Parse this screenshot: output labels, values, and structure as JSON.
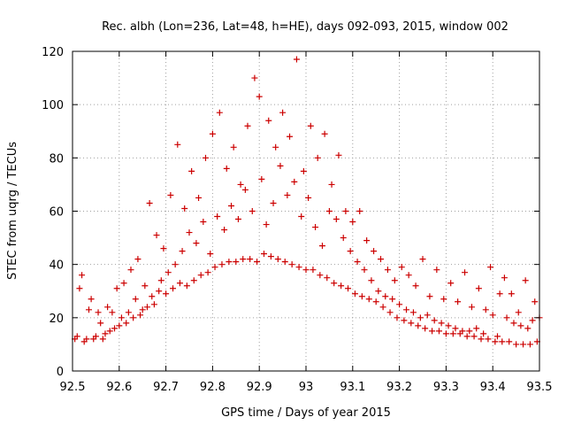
{
  "chart_data": {
    "type": "scatter",
    "title": "Rec. albh (Lon=236, Lat=48, h=HE), days 092-093, 2015, window 002",
    "xlabel": "GPS time / Days of year 2015",
    "ylabel": "STEC from uqrg / TECUs",
    "xlim": [
      92.5,
      93.5
    ],
    "ylim": [
      0,
      120
    ],
    "x_ticks": [
      "92.5",
      "92.6",
      "92.7",
      "92.8",
      "92.9",
      "93",
      "93.1",
      "93.2",
      "93.3",
      "93.4",
      "93.5"
    ],
    "y_ticks": [
      "0",
      "20",
      "40",
      "60",
      "80",
      "100",
      "120"
    ],
    "grid": true,
    "marker": "+",
    "series": [
      {
        "name": "STEC",
        "color": "#cc0000",
        "points": [
          [
            92.505,
            12
          ],
          [
            92.51,
            13
          ],
          [
            92.515,
            31
          ],
          [
            92.52,
            36
          ],
          [
            92.525,
            11
          ],
          [
            92.53,
            12
          ],
          [
            92.535,
            23
          ],
          [
            92.54,
            27
          ],
          [
            92.545,
            12
          ],
          [
            92.55,
            13
          ],
          [
            92.555,
            22
          ],
          [
            92.56,
            18
          ],
          [
            92.565,
            12
          ],
          [
            92.57,
            14
          ],
          [
            92.575,
            24
          ],
          [
            92.58,
            15
          ],
          [
            92.585,
            22
          ],
          [
            92.59,
            16
          ],
          [
            92.595,
            31
          ],
          [
            92.6,
            17
          ],
          [
            92.605,
            20
          ],
          [
            92.61,
            33
          ],
          [
            92.615,
            18
          ],
          [
            92.62,
            22
          ],
          [
            92.625,
            38
          ],
          [
            92.63,
            20
          ],
          [
            92.635,
            27
          ],
          [
            92.64,
            42
          ],
          [
            92.645,
            21
          ],
          [
            92.65,
            23
          ],
          [
            92.655,
            32
          ],
          [
            92.66,
            24
          ],
          [
            92.665,
            63
          ],
          [
            92.67,
            28
          ],
          [
            92.675,
            25
          ],
          [
            92.68,
            51
          ],
          [
            92.685,
            30
          ],
          [
            92.69,
            34
          ],
          [
            92.695,
            46
          ],
          [
            92.7,
            29
          ],
          [
            92.705,
            37
          ],
          [
            92.71,
            66
          ],
          [
            92.715,
            31
          ],
          [
            92.72,
            40
          ],
          [
            92.725,
            85
          ],
          [
            92.73,
            33
          ],
          [
            92.735,
            45
          ],
          [
            92.74,
            61
          ],
          [
            92.745,
            32
          ],
          [
            92.75,
            52
          ],
          [
            92.755,
            75
          ],
          [
            92.76,
            34
          ],
          [
            92.765,
            48
          ],
          [
            92.77,
            65
          ],
          [
            92.775,
            36
          ],
          [
            92.78,
            56
          ],
          [
            92.785,
            80
          ],
          [
            92.79,
            37
          ],
          [
            92.795,
            44
          ],
          [
            92.8,
            89
          ],
          [
            92.805,
            39
          ],
          [
            92.81,
            58
          ],
          [
            92.815,
            97
          ],
          [
            92.82,
            40
          ],
          [
            92.825,
            53
          ],
          [
            92.83,
            76
          ],
          [
            92.835,
            41
          ],
          [
            92.84,
            62
          ],
          [
            92.845,
            84
          ],
          [
            92.85,
            41
          ],
          [
            92.855,
            57
          ],
          [
            92.86,
            70
          ],
          [
            92.865,
            42
          ],
          [
            92.87,
            68
          ],
          [
            92.875,
            92
          ],
          [
            92.88,
            42
          ],
          [
            92.885,
            60
          ],
          [
            92.89,
            110
          ],
          [
            92.895,
            41
          ],
          [
            92.9,
            103
          ],
          [
            92.905,
            72
          ],
          [
            92.91,
            44
          ],
          [
            92.915,
            55
          ],
          [
            92.92,
            94
          ],
          [
            92.925,
            43
          ],
          [
            92.93,
            63
          ],
          [
            92.935,
            84
          ],
          [
            92.94,
            42
          ],
          [
            92.945,
            77
          ],
          [
            92.95,
            97
          ],
          [
            92.955,
            41
          ],
          [
            92.96,
            66
          ],
          [
            92.965,
            88
          ],
          [
            92.97,
            40
          ],
          [
            92.975,
            71
          ],
          [
            92.98,
            117
          ],
          [
            92.985,
            39
          ],
          [
            92.99,
            58
          ],
          [
            92.995,
            75
          ],
          [
            93.0,
            38
          ],
          [
            93.005,
            65
          ],
          [
            93.01,
            92
          ],
          [
            93.015,
            38
          ],
          [
            93.02,
            54
          ],
          [
            93.025,
            80
          ],
          [
            93.03,
            36
          ],
          [
            93.035,
            47
          ],
          [
            93.04,
            89
          ],
          [
            93.045,
            35
          ],
          [
            93.05,
            60
          ],
          [
            93.055,
            70
          ],
          [
            93.06,
            33
          ],
          [
            93.065,
            57
          ],
          [
            93.07,
            81
          ],
          [
            93.075,
            32
          ],
          [
            93.08,
            50
          ],
          [
            93.085,
            60
          ],
          [
            93.09,
            31
          ],
          [
            93.095,
            45
          ],
          [
            93.1,
            56
          ],
          [
            93.105,
            29
          ],
          [
            93.11,
            41
          ],
          [
            93.115,
            60
          ],
          [
            93.12,
            28
          ],
          [
            93.125,
            38
          ],
          [
            93.13,
            49
          ],
          [
            93.135,
            27
          ],
          [
            93.14,
            34
          ],
          [
            93.145,
            45
          ],
          [
            93.15,
            26
          ],
          [
            93.155,
            30
          ],
          [
            93.16,
            42
          ],
          [
            93.165,
            24
          ],
          [
            93.17,
            28
          ],
          [
            93.175,
            38
          ],
          [
            93.18,
            22
          ],
          [
            93.185,
            27
          ],
          [
            93.19,
            34
          ],
          [
            93.195,
            20
          ],
          [
            93.2,
            25
          ],
          [
            93.205,
            39
          ],
          [
            93.21,
            19
          ],
          [
            93.215,
            23
          ],
          [
            93.22,
            36
          ],
          [
            93.225,
            18
          ],
          [
            93.23,
            22
          ],
          [
            93.235,
            32
          ],
          [
            93.24,
            17
          ],
          [
            93.245,
            20
          ],
          [
            93.25,
            42
          ],
          [
            93.255,
            16
          ],
          [
            93.26,
            21
          ],
          [
            93.265,
            28
          ],
          [
            93.27,
            15
          ],
          [
            93.275,
            19
          ],
          [
            93.28,
            38
          ],
          [
            93.285,
            15
          ],
          [
            93.29,
            18
          ],
          [
            93.295,
            27
          ],
          [
            93.3,
            14
          ],
          [
            93.305,
            17
          ],
          [
            93.31,
            33
          ],
          [
            93.315,
            14
          ],
          [
            93.32,
            16
          ],
          [
            93.325,
            26
          ],
          [
            93.33,
            14
          ],
          [
            93.335,
            15
          ],
          [
            93.34,
            37
          ],
          [
            93.345,
            13
          ],
          [
            93.35,
            15
          ],
          [
            93.355,
            24
          ],
          [
            93.36,
            13
          ],
          [
            93.365,
            16
          ],
          [
            93.37,
            31
          ],
          [
            93.375,
            12
          ],
          [
            93.38,
            14
          ],
          [
            93.385,
            23
          ],
          [
            93.39,
            12
          ],
          [
            93.395,
            39
          ],
          [
            93.4,
            21
          ],
          [
            93.405,
            11
          ],
          [
            93.41,
            13
          ],
          [
            93.415,
            29
          ],
          [
            93.42,
            11
          ],
          [
            93.425,
            35
          ],
          [
            93.43,
            20
          ],
          [
            93.435,
            11
          ],
          [
            93.44,
            29
          ],
          [
            93.445,
            18
          ],
          [
            93.45,
            10
          ],
          [
            93.455,
            22
          ],
          [
            93.46,
            17
          ],
          [
            93.465,
            10
          ],
          [
            93.47,
            34
          ],
          [
            93.475,
            16
          ],
          [
            93.48,
            10
          ],
          [
            93.485,
            19
          ],
          [
            93.49,
            26
          ],
          [
            93.495,
            11
          ],
          [
            93.5,
            20
          ]
        ]
      }
    ]
  }
}
